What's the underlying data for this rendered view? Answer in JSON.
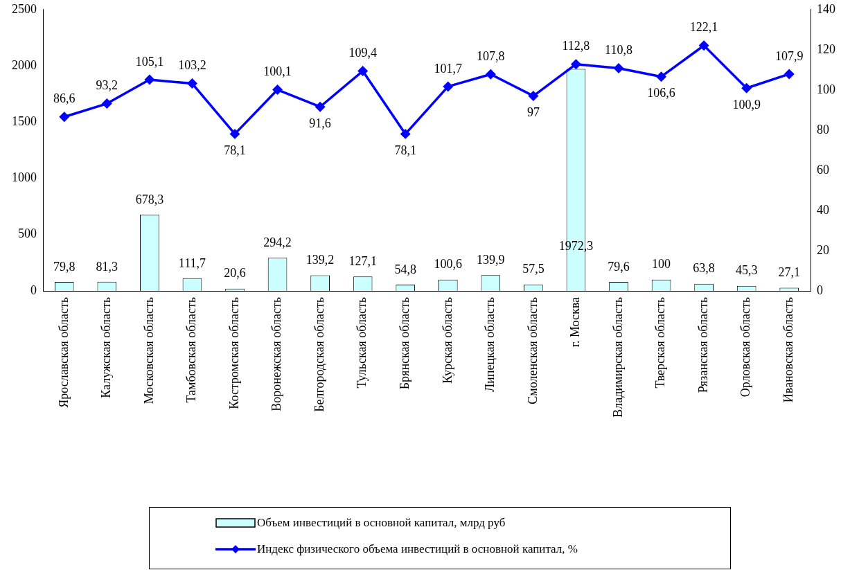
{
  "chart_data": {
    "type": "bar",
    "categories": [
      "Ярославская область",
      "Калужская область",
      "Московская область",
      "Тамбовская область",
      "Костромская область",
      "Воронежская область",
      "Белгородская область",
      "Тульская область",
      "Брянская область",
      "Курская область",
      "Липецкая область",
      "Смоленская область",
      "г. Москва",
      "Владимирская область",
      "Тверская область",
      "Рязанская область",
      "Орловская область",
      "Ивановская область"
    ],
    "series": [
      {
        "name": "Объем инвестиций в основной капитал, млрд руб",
        "color": "#ccffff",
        "values": [
          79.8,
          81.3,
          678.3,
          111.7,
          20.6,
          294.2,
          139.2,
          127.1,
          54.8,
          100.6,
          139.9,
          57.5,
          1972.3,
          79.6,
          100,
          63.8,
          45.3,
          27.1
        ],
        "value_labels": [
          "79,8",
          "81,3",
          "678,3",
          "111,7",
          "20,6",
          "294,2",
          "139,2",
          "127,1",
          "54,8",
          "100,6",
          "139,9",
          "57,5",
          "1972,3",
          "79,6",
          "100",
          "63,8",
          "45,3",
          "27,1"
        ]
      },
      {
        "name": "Индекс физического объема инвестиций в основной капитал, %",
        "type": "line",
        "axis": "y2",
        "color": "#0000ff",
        "marker": "diamond",
        "line_style": "solid",
        "values": [
          86.6,
          93.2,
          105.1,
          103.2,
          78.1,
          100.1,
          91.6,
          109.4,
          78.1,
          101.7,
          107.8,
          97,
          112.8,
          110.8,
          106.6,
          122.1,
          100.9,
          107.9
        ],
        "value_labels": [
          "86,6",
          "93,2",
          "105,1",
          "103,2",
          "78,1",
          "100,1",
          "91,6",
          "109,4",
          "78,1",
          "101,7",
          "107,8",
          "97",
          "112,8",
          "110,8",
          "106,6",
          "122,1",
          "100,9",
          "107,9"
        ]
      }
    ],
    "ylim": [
      0,
      2500
    ],
    "yticks": [
      0,
      500,
      1000,
      1500,
      2000,
      2500
    ],
    "y2lim": [
      0,
      140
    ],
    "y2ticks": [
      0,
      20,
      40,
      60,
      80,
      100,
      120,
      140
    ],
    "grid": false,
    "legend": "bottom"
  }
}
